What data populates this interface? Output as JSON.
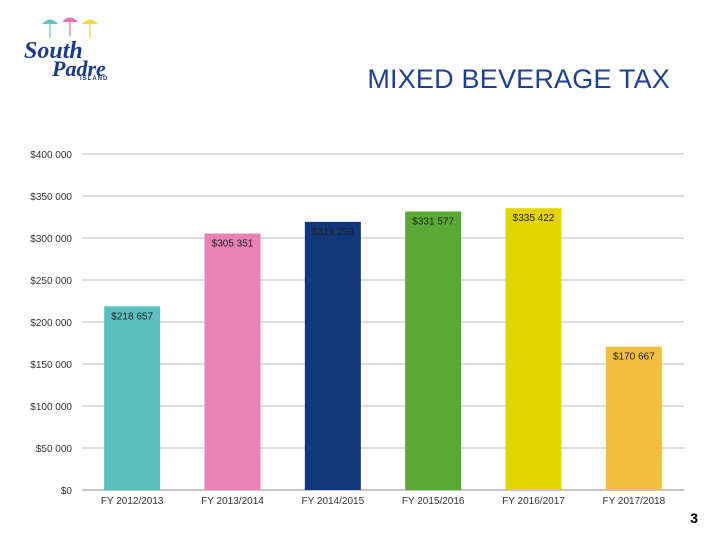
{
  "header": {
    "logo_line1": "South",
    "logo_line2": "Padre",
    "logo_line3": "ISLAND",
    "title": "MIXED BEVERAGE TAX"
  },
  "footer": {
    "page_number": "3"
  },
  "colors": {
    "title": "#1f3f8f",
    "umbrellas": [
      "#5ec8c4",
      "#e86fb0",
      "#f4d640"
    ]
  },
  "chart_data": {
    "type": "bar",
    "title": "MIXED BEVERAGE TAX",
    "xlabel": "",
    "ylabel": "",
    "categories": [
      "FY 2012/2013",
      "FY 2013/2014",
      "FY 2014/2015",
      "FY 2015/2016",
      "FY 2016/2017",
      "FY 2017/2018"
    ],
    "values": [
      218657,
      305351,
      319259,
      331577,
      335422,
      170667
    ],
    "data_labels": [
      "$218 657",
      "$305 351",
      "$319,259",
      "$331 577",
      "$335 422",
      "$170 667"
    ],
    "bar_colors": [
      "#5abfbe",
      "#e882b5",
      "#12387c",
      "#5aa935",
      "#e3d400",
      "#f2bf3c"
    ],
    "ylim": [
      0,
      400000
    ],
    "yticks": [
      0,
      50000,
      100000,
      150000,
      200000,
      250000,
      300000,
      350000,
      400000
    ],
    "ytick_labels": [
      "$0",
      "$50 000",
      "$100 000",
      "$150 000",
      "$200 000",
      "$250 000",
      "$300 000",
      "$350 000",
      "$400 000"
    ],
    "grid": true,
    "legend": "none"
  }
}
